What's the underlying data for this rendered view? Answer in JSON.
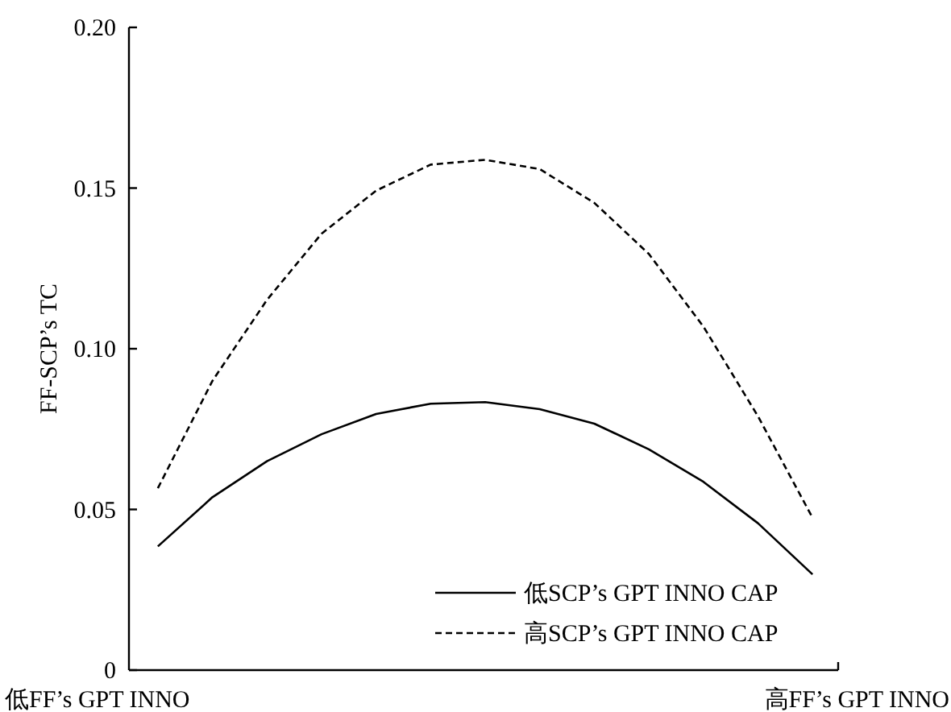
{
  "chart_data": {
    "type": "line",
    "ylabel": "FF-SCP’s TC",
    "categories": [
      null,
      null,
      null,
      null,
      null,
      null,
      null,
      null,
      null,
      null,
      null,
      null,
      null
    ],
    "series": [
      {
        "name": "低SCP’s GPT INNO CAP",
        "color": "#000000",
        "line_style": "solid",
        "values": [
          0.0385,
          0.0538,
          0.065,
          0.0734,
          0.0797,
          0.0829,
          0.0834,
          0.0812,
          0.0767,
          0.0687,
          0.0586,
          0.0457,
          0.0298
        ]
      },
      {
        "name": "高SCP’s GPT INNO CAP",
        "color": "#000000",
        "line_style": "dashed",
        "values": [
          0.0566,
          0.09,
          0.1152,
          0.1358,
          0.1492,
          0.1573,
          0.1588,
          0.1559,
          0.1454,
          0.1295,
          0.1069,
          0.079,
          0.0474
        ]
      }
    ],
    "ylim": [
      0,
      0.2
    ],
    "yticks": [
      0,
      {
        "value": 0.05,
        "label": "0.05"
      },
      {
        "value": 0.1,
        "label": "0.10"
      },
      {
        "value": 0.15,
        "label": "0.15"
      },
      {
        "value": 0.2,
        "label": "0.20"
      }
    ],
    "annotations": [
      "低FF’s GPT INNO",
      "高FF’s GPT INNO"
    ],
    "legend": "bottom right",
    "grid": false,
    "marker": "none"
  }
}
